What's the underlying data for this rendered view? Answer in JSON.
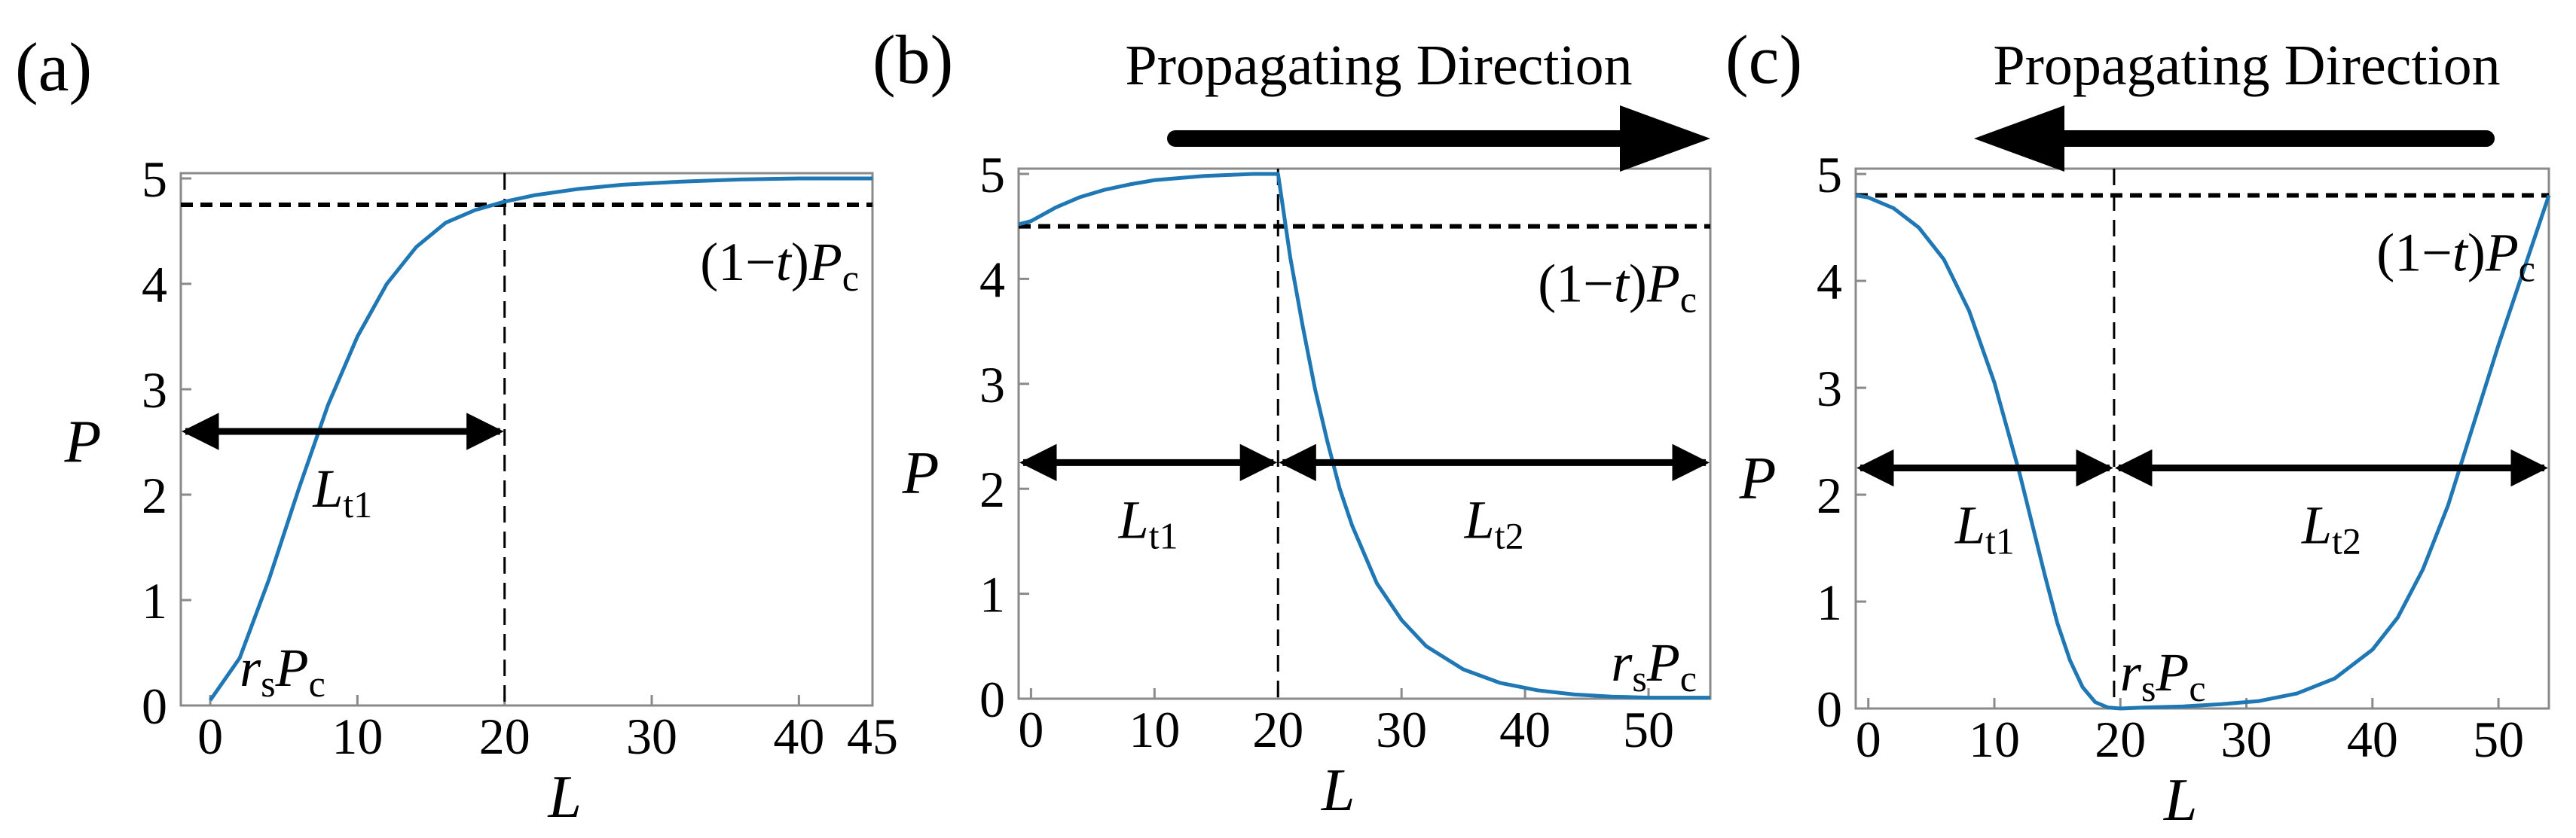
{
  "figure": {
    "panels": [
      "(a)",
      "(b)",
      "(c)"
    ],
    "propagating_label": "Propagating Direction"
  },
  "chart_data": [
    {
      "type": "line",
      "panel": "(a)",
      "xlabel": "L",
      "ylabel": "P",
      "xlim": [
        -2,
        45
      ],
      "ylim": [
        0,
        5.05
      ],
      "xticks": [
        0,
        10,
        20,
        30,
        40,
        45
      ],
      "yticks": [
        0,
        1,
        2,
        3,
        4,
        5
      ],
      "grid": false,
      "reference_line": {
        "y": 4.75,
        "label": "(1−t)Pc"
      },
      "divider_x": [
        20
      ],
      "span_arrows": [
        {
          "from": -2,
          "to": 20,
          "label": "Lt1"
        }
      ],
      "low_label": "rsPc",
      "propagation": "none",
      "series": [
        {
          "color": "#1f77b4",
          "x": [
            0,
            2,
            4,
            6,
            8,
            10,
            12,
            14,
            16,
            18,
            20,
            22,
            25,
            28,
            32,
            36,
            40,
            45
          ],
          "y": [
            0.05,
            0.45,
            1.2,
            2.05,
            2.85,
            3.5,
            4.0,
            4.35,
            4.58,
            4.7,
            4.78,
            4.84,
            4.9,
            4.94,
            4.97,
            4.99,
            5.0,
            5.0
          ]
        }
      ]
    },
    {
      "type": "line",
      "panel": "(b)",
      "xlabel": "L",
      "ylabel": "P",
      "xlim": [
        -1,
        55
      ],
      "ylim": [
        0,
        5.05
      ],
      "xticks": [
        0,
        10,
        20,
        30,
        40,
        50
      ],
      "yticks": [
        0,
        1,
        2,
        3,
        4,
        5
      ],
      "grid": false,
      "reference_line": {
        "y": 4.5,
        "label": "(1−t)Pc"
      },
      "divider_x": [
        20
      ],
      "span_arrows": [
        {
          "from": -1,
          "to": 20,
          "label": "Lt1"
        },
        {
          "from": 20,
          "to": 55,
          "label": "Lt2"
        }
      ],
      "low_label": "rsPc",
      "propagation": "right",
      "series": [
        {
          "color": "#1f77b4",
          "x": [
            -1,
            0,
            2,
            4,
            6,
            8,
            10,
            12,
            14,
            16,
            18,
            20,
            21,
            22,
            23,
            24,
            25,
            26,
            28,
            30,
            32,
            35,
            38,
            41,
            44,
            47,
            50,
            55
          ],
          "y": [
            4.52,
            4.55,
            4.68,
            4.78,
            4.85,
            4.9,
            4.94,
            4.96,
            4.98,
            4.99,
            5.0,
            5.0,
            4.2,
            3.55,
            2.95,
            2.45,
            2.0,
            1.65,
            1.1,
            0.75,
            0.5,
            0.28,
            0.15,
            0.08,
            0.04,
            0.02,
            0.01,
            0.01
          ]
        }
      ]
    },
    {
      "type": "line",
      "panel": "(c)",
      "xlabel": "L",
      "ylabel": "P",
      "xlim": [
        -1,
        54
      ],
      "ylim": [
        0,
        5.05
      ],
      "xticks": [
        0,
        10,
        20,
        30,
        40,
        50
      ],
      "yticks": [
        0,
        1,
        2,
        3,
        4,
        5
      ],
      "grid": false,
      "reference_line": {
        "y": 4.8,
        "label": "(1−t)Pc"
      },
      "divider_x": [
        19.5
      ],
      "span_arrows": [
        {
          "from": -1,
          "to": 19.5,
          "label": "Lt1"
        },
        {
          "from": 19.5,
          "to": 54,
          "label": "Lt2"
        }
      ],
      "low_label": "rsPc",
      "propagation": "left",
      "series": [
        {
          "color": "#1f77b4",
          "x": [
            -1,
            0,
            2,
            4,
            6,
            8,
            10,
            12,
            14,
            15,
            16,
            17,
            18,
            19,
            20,
            22,
            25,
            28,
            31,
            34,
            37,
            40,
            42,
            44,
            46,
            48,
            50,
            52,
            54
          ],
          "y": [
            4.8,
            4.78,
            4.68,
            4.5,
            4.2,
            3.72,
            3.05,
            2.2,
            1.25,
            0.8,
            0.45,
            0.2,
            0.06,
            0.01,
            0.0,
            0.01,
            0.02,
            0.04,
            0.07,
            0.14,
            0.28,
            0.55,
            0.85,
            1.3,
            1.9,
            2.65,
            3.4,
            4.1,
            4.8
          ]
        }
      ]
    }
  ]
}
